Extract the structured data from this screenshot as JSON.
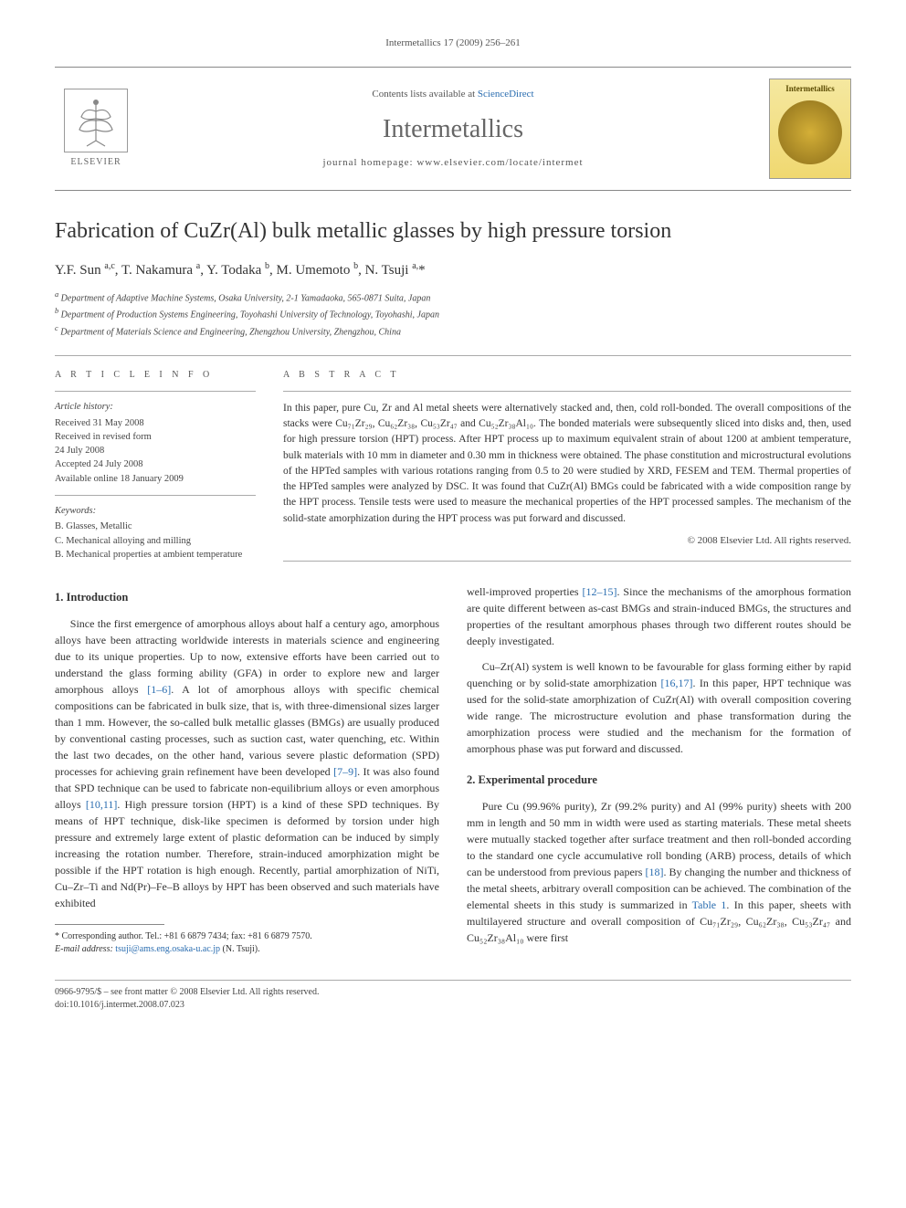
{
  "header": {
    "citation": "Intermetallics 17 (2009) 256–261",
    "contents_prefix": "Contents lists available at ",
    "contents_link": "ScienceDirect",
    "journal": "Intermetallics",
    "homepage_prefix": "journal homepage: ",
    "homepage_url": "www.elsevier.com/locate/intermet",
    "publisher": "ELSEVIER",
    "cover_label": "Intermetallics"
  },
  "article": {
    "title": "Fabrication of CuZr(Al) bulk metallic glasses by high pressure torsion",
    "authors_html": "Y.F. Sun <sup>a,c</sup>, T. Nakamura <sup>a</sup>, Y. Todaka <sup>b</sup>, M. Umemoto <sup>b</sup>, N. Tsuji <sup>a,</sup>*",
    "affiliations": [
      "a Department of Adaptive Machine Systems, Osaka University, 2-1 Yamadaoka, 565-0871 Suita, Japan",
      "b Department of Production Systems Engineering, Toyohashi University of Technology, Toyohashi, Japan",
      "c Department of Materials Science and Engineering, Zhengzhou University, Zhengzhou, China"
    ]
  },
  "info": {
    "heading_left": "A R T I C L E   I N F O",
    "heading_right": "A B S T R A C T",
    "history_label": "Article history:",
    "history": "Received 31 May 2008\nReceived in revised form\n24 July 2008\nAccepted 24 July 2008\nAvailable online 18 January 2009",
    "keywords_label": "Keywords:",
    "keywords": "B. Glasses, Metallic\nC. Mechanical alloying and milling\nB. Mechanical properties at ambient temperature"
  },
  "abstract": {
    "text": "In this paper, pure Cu, Zr and Al metal sheets were alternatively stacked and, then, cold roll-bonded. The overall compositions of the stacks were Cu₇₁Zr₂₉, Cu₆₂Zr₃₈, Cu₅₃Zr₄₇ and Cu₅₂Zr₃₈Al₁₀. The bonded materials were subsequently sliced into disks and, then, used for high pressure torsion (HPT) process. After HPT process up to maximum equivalent strain of about 1200 at ambient temperature, bulk materials with 10 mm in diameter and 0.30 mm in thickness were obtained. The phase constitution and microstructural evolutions of the HPTed samples with various rotations ranging from 0.5 to 20 were studied by XRD, FESEM and TEM. Thermal properties of the HPTed samples were analyzed by DSC. It was found that CuZr(Al) BMGs could be fabricated with a wide composition range by the HPT process. Tensile tests were used to measure the mechanical properties of the HPT processed samples. The mechanism of the solid-state amorphization during the HPT process was put forward and discussed.",
    "copyright": "© 2008 Elsevier Ltd. All rights reserved."
  },
  "sections": {
    "s1_heading": "1. Introduction",
    "s1_p1": "Since the first emergence of amorphous alloys about half a century ago, amorphous alloys have been attracting worldwide interests in materials science and engineering due to its unique properties. Up to now, extensive efforts have been carried out to understand the glass forming ability (GFA) in order to explore new and larger amorphous alloys [1–6]. A lot of amorphous alloys with specific chemical compositions can be fabricated in bulk size, that is, with three-dimensional sizes larger than 1 mm. However, the so-called bulk metallic glasses (BMGs) are usually produced by conventional casting processes, such as suction cast, water quenching, etc. Within the last two decades, on the other hand, various severe plastic deformation (SPD) processes for achieving grain refinement have been developed [7–9]. It was also found that SPD technique can be used to fabricate non-equilibrium alloys or even amorphous alloys [10,11]. High pressure torsion (HPT) is a kind of these SPD techniques. By means of HPT technique, disk-like specimen is deformed by torsion under high pressure and extremely large extent of plastic deformation can be induced by simply increasing the rotation number. Therefore, strain-induced amorphization might be possible if the HPT rotation is high enough. Recently, partial amorphization of NiTi, Cu–Zr–Ti and Nd(Pr)–Fe–B alloys by HPT has been observed and such materials have exhibited",
    "s1_p2": "well-improved properties [12–15]. Since the mechanisms of the amorphous formation are quite different between as-cast BMGs and strain-induced BMGs, the structures and properties of the resultant amorphous phases through two different routes should be deeply investigated.",
    "s1_p3": "Cu–Zr(Al) system is well known to be favourable for glass forming either by rapid quenching or by solid-state amorphization [16,17]. In this paper, HPT technique was used for the solid-state amorphization of CuZr(Al) with overall composition covering wide range. The microstructure evolution and phase transformation during the amorphization process were studied and the mechanism for the formation of amorphous phase was put forward and discussed.",
    "s2_heading": "2. Experimental procedure",
    "s2_p1": "Pure Cu (99.96% purity), Zr (99.2% purity) and Al (99% purity) sheets with 200 mm in length and 50 mm in width were used as starting materials. These metal sheets were mutually stacked together after surface treatment and then roll-bonded according to the standard one cycle accumulative roll bonding (ARB) process, details of which can be understood from previous papers [18]. By changing the number and thickness of the metal sheets, arbitrary overall composition can be achieved. The combination of the elemental sheets in this study is summarized in Table 1. In this paper, sheets with multilayered structure and overall composition of Cu₇₁Zr₂₉, Cu₆₂Zr₃₈, Cu₅₃Zr₄₇ and Cu₅₂Zr₃₈Al₁₀ were first"
  },
  "footnote": {
    "marker": "* Corresponding author. Tel.: +81 6 6879 7434; fax: +81 6 6879 7570.",
    "email_label": "E-mail address: ",
    "email": "tsuji@ams.eng.osaka-u.ac.jp",
    "email_suffix": " (N. Tsuji)."
  },
  "footer": {
    "line1": "0966-9795/$ – see front matter © 2008 Elsevier Ltd. All rights reserved.",
    "line2": "doi:10.1016/j.intermet.2008.07.023"
  },
  "colors": {
    "link": "#2a6db0",
    "text": "#333333",
    "muted": "#555555",
    "rule": "#aaaaaa"
  }
}
